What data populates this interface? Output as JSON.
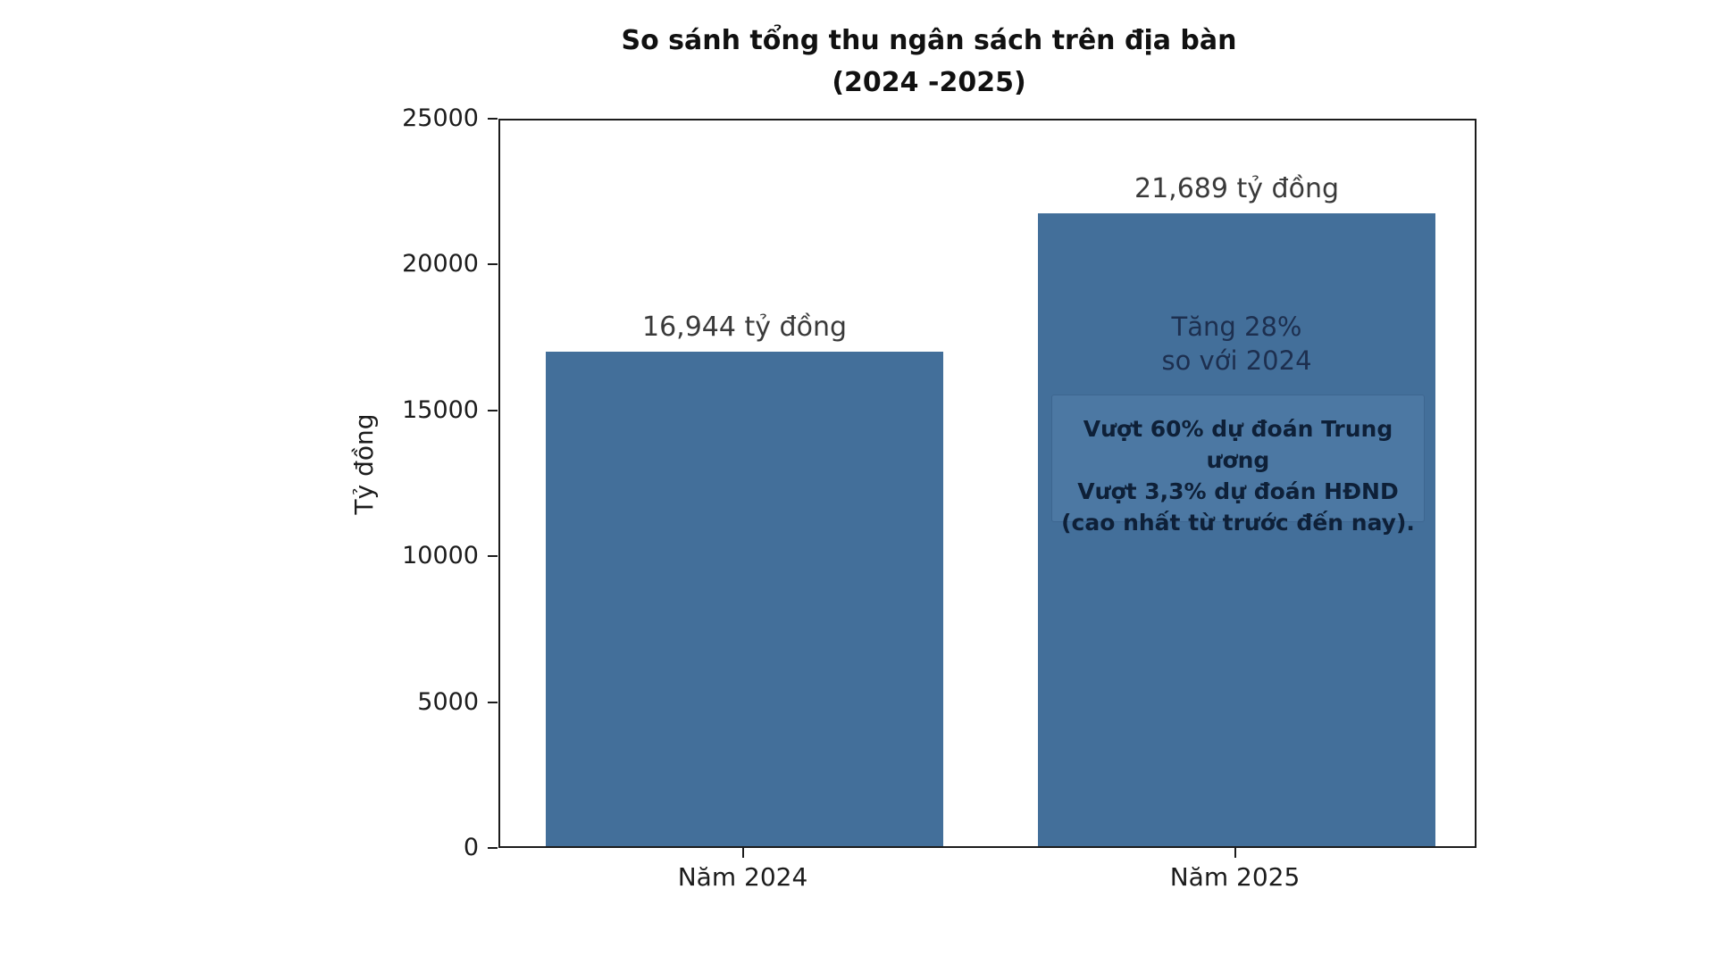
{
  "title": {
    "line1": "So sánh tổng thu ngân sách trên địa bàn",
    "line2": "(2024 -2025)"
  },
  "chart_data": {
    "type": "bar",
    "title": "So sánh tổng thu ngân sách trên địa bàn (2024 -2025)",
    "categories": [
      "Năm 2024",
      "Năm 2025"
    ],
    "values": [
      16944,
      21689
    ],
    "bar_labels": [
      "16,944 tỷ đồng",
      "21,689 tỷ đồng"
    ],
    "xlabel": "",
    "ylabel": "Tỷ đồng",
    "ylim": [
      0,
      25000
    ],
    "yticks": [
      0,
      5000,
      10000,
      15000,
      20000,
      25000
    ],
    "grid": false,
    "legend": "none",
    "annotation_growth": {
      "lines": [
        "Tăng 28%",
        "so với 2024"
      ]
    },
    "annotation_box": {
      "lines": [
        "Vượt 60% dự đoán Trung ương",
        "Vượt 3,3% dự đoán HĐND",
        "(cao nhất từ trước đến nay)."
      ]
    },
    "colors": {
      "bar": "#436F9A",
      "note_box_bg": "#4C78A3",
      "note_box_border": "#3d6690",
      "growth_text": "#1D2F4F",
      "note_text": "#0E2038",
      "axis_text": "#1c1c1c",
      "value_label_text": "#3a3a3a",
      "title_text": "#111111"
    }
  }
}
